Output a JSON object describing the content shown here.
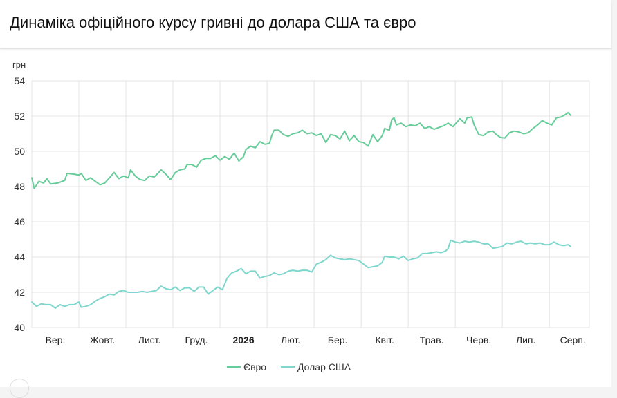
{
  "header": {
    "title": "Динаміка офіційного курсу гривні до долара США та євро"
  },
  "chart_data": {
    "type": "line",
    "title": "Динаміка офіційного курсу гривні до долара США та євро",
    "ylabel": "грн",
    "ylim": [
      40,
      54
    ],
    "yticks": [
      "40",
      "42",
      "44",
      "46",
      "48",
      "50",
      "52",
      "54"
    ],
    "xlim": [
      0,
      11.85
    ],
    "xticks": [
      {
        "pos": 0.5,
        "label": "Вер.",
        "bold": false
      },
      {
        "pos": 1.5,
        "label": "Жовт.",
        "bold": false
      },
      {
        "pos": 2.5,
        "label": "Лист.",
        "bold": false
      },
      {
        "pos": 3.5,
        "label": "Груд.",
        "bold": false
      },
      {
        "pos": 4.5,
        "label": "2026",
        "bold": true
      },
      {
        "pos": 5.5,
        "label": "Лют.",
        "bold": false
      },
      {
        "pos": 6.5,
        "label": "Бер.",
        "bold": false
      },
      {
        "pos": 7.5,
        "label": "Квіт.",
        "bold": false
      },
      {
        "pos": 8.5,
        "label": "Трав.",
        "bold": false
      },
      {
        "pos": 9.5,
        "label": "Черв.",
        "bold": false
      },
      {
        "pos": 10.5,
        "label": "Лип.",
        "bold": false
      },
      {
        "pos": 11.5,
        "label": "Серп.",
        "bold": false
      }
    ],
    "grid": true,
    "legend_position": "bottom",
    "series": [
      {
        "name": "Євро",
        "color": "#66cc99",
        "points": [
          [
            0.0,
            48.5
          ],
          [
            0.05,
            47.9
          ],
          [
            0.15,
            48.3
          ],
          [
            0.25,
            48.2
          ],
          [
            0.32,
            48.45
          ],
          [
            0.4,
            48.15
          ],
          [
            0.55,
            48.2
          ],
          [
            0.7,
            48.35
          ],
          [
            0.75,
            48.75
          ],
          [
            0.9,
            48.7
          ],
          [
            1.0,
            48.65
          ],
          [
            1.05,
            48.75
          ],
          [
            1.15,
            48.35
          ],
          [
            1.25,
            48.5
          ],
          [
            1.35,
            48.3
          ],
          [
            1.45,
            48.1
          ],
          [
            1.55,
            48.2
          ],
          [
            1.65,
            48.5
          ],
          [
            1.75,
            48.8
          ],
          [
            1.85,
            48.45
          ],
          [
            1.95,
            48.6
          ],
          [
            2.05,
            48.5
          ],
          [
            2.1,
            48.95
          ],
          [
            2.2,
            48.6
          ],
          [
            2.3,
            48.4
          ],
          [
            2.4,
            48.35
          ],
          [
            2.5,
            48.6
          ],
          [
            2.6,
            48.55
          ],
          [
            2.7,
            48.8
          ],
          [
            2.75,
            48.95
          ],
          [
            2.85,
            48.7
          ],
          [
            2.95,
            48.4
          ],
          [
            3.05,
            48.8
          ],
          [
            3.15,
            48.95
          ],
          [
            3.25,
            49.0
          ],
          [
            3.3,
            49.25
          ],
          [
            3.4,
            49.25
          ],
          [
            3.5,
            49.1
          ],
          [
            3.6,
            49.5
          ],
          [
            3.7,
            49.6
          ],
          [
            3.8,
            49.6
          ],
          [
            3.9,
            49.75
          ],
          [
            4.0,
            49.5
          ],
          [
            4.1,
            49.7
          ],
          [
            4.2,
            49.55
          ],
          [
            4.3,
            49.9
          ],
          [
            4.4,
            49.45
          ],
          [
            4.5,
            49.7
          ],
          [
            4.55,
            50.1
          ],
          [
            4.65,
            50.3
          ],
          [
            4.75,
            50.2
          ],
          [
            4.85,
            50.55
          ],
          [
            4.95,
            50.4
          ],
          [
            5.05,
            50.45
          ],
          [
            5.1,
            50.9
          ],
          [
            5.15,
            51.2
          ],
          [
            5.25,
            51.2
          ],
          [
            5.35,
            50.95
          ],
          [
            5.45,
            50.85
          ],
          [
            5.55,
            51.0
          ],
          [
            5.65,
            51.05
          ],
          [
            5.75,
            51.2
          ],
          [
            5.85,
            51.0
          ],
          [
            5.95,
            51.05
          ],
          [
            6.05,
            50.9
          ],
          [
            6.15,
            51.0
          ],
          [
            6.25,
            50.5
          ],
          [
            6.35,
            50.95
          ],
          [
            6.45,
            50.9
          ],
          [
            6.55,
            50.7
          ],
          [
            6.65,
            51.15
          ],
          [
            6.75,
            50.6
          ],
          [
            6.85,
            50.9
          ],
          [
            6.95,
            50.55
          ],
          [
            7.05,
            50.5
          ],
          [
            7.15,
            50.3
          ],
          [
            7.25,
            50.95
          ],
          [
            7.35,
            50.55
          ],
          [
            7.45,
            50.9
          ],
          [
            7.5,
            51.3
          ],
          [
            7.6,
            51.2
          ],
          [
            7.65,
            51.8
          ],
          [
            7.7,
            51.9
          ],
          [
            7.75,
            51.5
          ],
          [
            7.85,
            51.6
          ],
          [
            7.95,
            51.4
          ],
          [
            8.05,
            51.5
          ],
          [
            8.15,
            51.45
          ],
          [
            8.25,
            51.6
          ],
          [
            8.35,
            51.3
          ],
          [
            8.45,
            51.4
          ],
          [
            8.55,
            51.25
          ],
          [
            8.65,
            51.35
          ],
          [
            8.75,
            51.45
          ],
          [
            8.85,
            51.6
          ],
          [
            8.95,
            51.4
          ],
          [
            9.05,
            51.7
          ],
          [
            9.1,
            51.85
          ],
          [
            9.2,
            51.6
          ],
          [
            9.25,
            51.9
          ],
          [
            9.35,
            51.95
          ],
          [
            9.4,
            51.5
          ],
          [
            9.5,
            50.95
          ],
          [
            9.6,
            50.9
          ],
          [
            9.7,
            51.1
          ],
          [
            9.8,
            51.15
          ],
          [
            9.85,
            51.0
          ],
          [
            9.95,
            50.8
          ],
          [
            10.05,
            50.75
          ],
          [
            10.15,
            51.05
          ],
          [
            10.25,
            51.15
          ],
          [
            10.35,
            51.1
          ],
          [
            10.45,
            51.0
          ],
          [
            10.55,
            51.05
          ],
          [
            10.65,
            51.3
          ],
          [
            10.75,
            51.5
          ],
          [
            10.85,
            51.75
          ],
          [
            10.95,
            51.6
          ],
          [
            11.05,
            51.5
          ],
          [
            11.15,
            51.9
          ],
          [
            11.25,
            51.95
          ],
          [
            11.35,
            52.1
          ],
          [
            11.4,
            52.2
          ],
          [
            11.45,
            52.05
          ]
        ]
      },
      {
        "name": "Долар США",
        "color": "#7fd6cc",
        "points": [
          [
            0.0,
            41.45
          ],
          [
            0.1,
            41.2
          ],
          [
            0.2,
            41.35
          ],
          [
            0.3,
            41.3
          ],
          [
            0.4,
            41.3
          ],
          [
            0.5,
            41.1
          ],
          [
            0.6,
            41.3
          ],
          [
            0.7,
            41.2
          ],
          [
            0.8,
            41.3
          ],
          [
            0.9,
            41.3
          ],
          [
            1.0,
            41.45
          ],
          [
            1.05,
            41.15
          ],
          [
            1.15,
            41.2
          ],
          [
            1.25,
            41.3
          ],
          [
            1.35,
            41.5
          ],
          [
            1.45,
            41.65
          ],
          [
            1.55,
            41.75
          ],
          [
            1.65,
            41.9
          ],
          [
            1.75,
            41.85
          ],
          [
            1.85,
            42.05
          ],
          [
            1.95,
            42.1
          ],
          [
            2.05,
            42.0
          ],
          [
            2.15,
            42.0
          ],
          [
            2.25,
            42.0
          ],
          [
            2.35,
            42.05
          ],
          [
            2.45,
            42.0
          ],
          [
            2.55,
            42.05
          ],
          [
            2.65,
            42.1
          ],
          [
            2.75,
            42.35
          ],
          [
            2.85,
            42.2
          ],
          [
            2.95,
            42.15
          ],
          [
            3.05,
            42.3
          ],
          [
            3.15,
            42.1
          ],
          [
            3.25,
            42.25
          ],
          [
            3.35,
            42.25
          ],
          [
            3.45,
            42.05
          ],
          [
            3.55,
            42.3
          ],
          [
            3.65,
            42.3
          ],
          [
            3.75,
            41.9
          ],
          [
            3.85,
            42.1
          ],
          [
            3.95,
            42.3
          ],
          [
            4.05,
            42.15
          ],
          [
            4.15,
            42.8
          ],
          [
            4.25,
            43.1
          ],
          [
            4.35,
            43.2
          ],
          [
            4.45,
            43.35
          ],
          [
            4.55,
            43.05
          ],
          [
            4.65,
            43.2
          ],
          [
            4.75,
            43.2
          ],
          [
            4.85,
            42.8
          ],
          [
            4.95,
            42.9
          ],
          [
            5.05,
            42.95
          ],
          [
            5.15,
            43.1
          ],
          [
            5.25,
            43.0
          ],
          [
            5.35,
            43.05
          ],
          [
            5.45,
            43.2
          ],
          [
            5.55,
            43.25
          ],
          [
            5.65,
            43.2
          ],
          [
            5.75,
            43.25
          ],
          [
            5.85,
            43.25
          ],
          [
            5.95,
            43.15
          ],
          [
            6.05,
            43.6
          ],
          [
            6.15,
            43.7
          ],
          [
            6.25,
            43.85
          ],
          [
            6.35,
            44.1
          ],
          [
            6.45,
            43.95
          ],
          [
            6.55,
            43.9
          ],
          [
            6.65,
            43.85
          ],
          [
            6.75,
            43.9
          ],
          [
            6.85,
            43.85
          ],
          [
            6.95,
            43.8
          ],
          [
            7.05,
            43.6
          ],
          [
            7.15,
            43.4
          ],
          [
            7.25,
            43.45
          ],
          [
            7.35,
            43.5
          ],
          [
            7.45,
            43.7
          ],
          [
            7.5,
            44.05
          ],
          [
            7.6,
            44.0
          ],
          [
            7.7,
            44.0
          ],
          [
            7.8,
            43.9
          ],
          [
            7.9,
            44.05
          ],
          [
            8.0,
            43.8
          ],
          [
            8.1,
            43.9
          ],
          [
            8.2,
            43.95
          ],
          [
            8.3,
            44.2
          ],
          [
            8.4,
            44.2
          ],
          [
            8.5,
            44.25
          ],
          [
            8.6,
            44.3
          ],
          [
            8.7,
            44.25
          ],
          [
            8.8,
            44.35
          ],
          [
            8.85,
            44.5
          ],
          [
            8.9,
            44.95
          ],
          [
            9.0,
            44.85
          ],
          [
            9.1,
            44.8
          ],
          [
            9.2,
            44.9
          ],
          [
            9.3,
            44.85
          ],
          [
            9.4,
            44.9
          ],
          [
            9.5,
            44.85
          ],
          [
            9.6,
            44.75
          ],
          [
            9.7,
            44.75
          ],
          [
            9.8,
            44.5
          ],
          [
            9.9,
            44.55
          ],
          [
            10.0,
            44.6
          ],
          [
            10.1,
            44.8
          ],
          [
            10.2,
            44.75
          ],
          [
            10.3,
            44.85
          ],
          [
            10.4,
            44.9
          ],
          [
            10.5,
            44.75
          ],
          [
            10.6,
            44.8
          ],
          [
            10.7,
            44.75
          ],
          [
            10.8,
            44.8
          ],
          [
            10.9,
            44.7
          ],
          [
            11.0,
            44.7
          ],
          [
            11.1,
            44.85
          ],
          [
            11.2,
            44.7
          ],
          [
            11.3,
            44.65
          ],
          [
            11.4,
            44.7
          ],
          [
            11.45,
            44.6
          ]
        ]
      }
    ]
  }
}
